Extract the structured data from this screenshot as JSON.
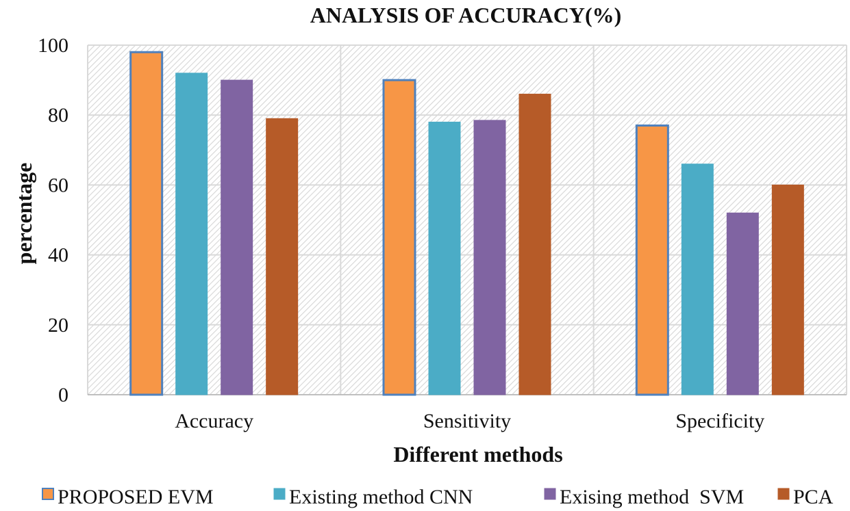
{
  "chart_data": {
    "type": "bar",
    "title": "ANALYSIS OF ACCURACY(%)",
    "xlabel": "Different methods",
    "ylabel": "percentage",
    "categories": [
      "Accuracy",
      "Sensitivity",
      "Specificity"
    ],
    "series": [
      {
        "name": "PROPOSED EVM",
        "values": [
          98,
          90,
          77
        ],
        "color": "#F79646",
        "stroke": "#4F81BD"
      },
      {
        "name": "Existing method CNN",
        "values": [
          92,
          78,
          66
        ],
        "color": "#4BACC6",
        "stroke": "#4BACC6"
      },
      {
        "name": "Exising method  SVM",
        "values": [
          90,
          78.5,
          52
        ],
        "color": "#8064A2",
        "stroke": "#8064A2"
      },
      {
        "name": "PCA",
        "values": [
          79,
          86,
          60
        ],
        "color": "#B65B28",
        "stroke": "#B65B28"
      }
    ],
    "ylim": [
      0,
      100
    ],
    "yticks": [
      0,
      20,
      40,
      60,
      80,
      100
    ],
    "grid": true,
    "legend_position": "bottom"
  }
}
